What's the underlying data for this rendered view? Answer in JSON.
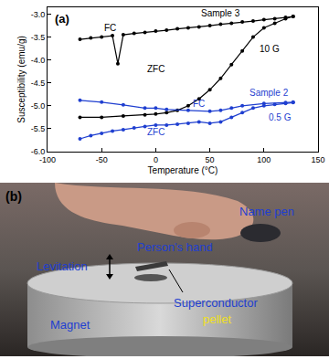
{
  "chart_data": {
    "type": "line",
    "panel_label": "(a)",
    "x_label": "Temperature (°C)",
    "y_label": "Susceptibility (emu/g)",
    "xlim": [
      -100,
      150
    ],
    "xticks": [
      -100,
      -50,
      0,
      50,
      100,
      150
    ],
    "ylim": [
      -6.0,
      -2.85
    ],
    "yticks": [
      {
        "value": -6.0,
        "label": "-6.0"
      },
      {
        "value": -5.5,
        "label": "-5.5"
      },
      {
        "value": -5.0,
        "label": "-5.0"
      },
      {
        "value": -4.5,
        "label": "-4.5"
      },
      {
        "value": -4.0,
        "label": "-4.0"
      },
      {
        "value": -3.5,
        "label": "-3.5"
      },
      {
        "value": -3.0,
        "label": "-3.0"
      }
    ],
    "grid": false,
    "marker": "circle",
    "line_style": "solid",
    "series": [
      {
        "color": "#000000",
        "x": [
          -70,
          -60,
          -50,
          -40,
          -35,
          -30,
          -20,
          -10,
          0,
          10,
          20,
          30,
          40,
          50,
          60,
          70,
          80,
          90,
          100,
          110,
          120,
          127
        ],
        "values": [
          -3.55,
          -3.52,
          -3.5,
          -3.47,
          -4.08,
          -3.45,
          -3.42,
          -3.4,
          -3.37,
          -3.35,
          -3.32,
          -3.3,
          -3.28,
          -3.25,
          -3.22,
          -3.2,
          -3.17,
          -3.15,
          -3.12,
          -3.1,
          -3.07,
          -3.05
        ]
      },
      {
        "color": "#000000",
        "x": [
          -70,
          -50,
          -30,
          -10,
          0,
          10,
          20,
          30,
          40,
          50,
          60,
          70,
          80,
          90,
          100,
          110,
          120,
          127
        ],
        "values": [
          -5.25,
          -5.25,
          -5.22,
          -5.2,
          -5.18,
          -5.15,
          -5.1,
          -5.0,
          -4.85,
          -4.65,
          -4.4,
          -4.1,
          -3.8,
          -3.5,
          -3.3,
          -3.2,
          -3.1,
          -3.05
        ]
      },
      {
        "color": "#1f3fd0",
        "x": [
          -70,
          -50,
          -30,
          -10,
          0,
          10,
          30,
          50,
          60,
          70,
          80,
          100,
          120,
          127
        ],
        "values": [
          -4.88,
          -4.92,
          -4.98,
          -5.05,
          -5.05,
          -5.08,
          -5.1,
          -5.12,
          -5.1,
          -5.05,
          -5.0,
          -4.95,
          -4.93,
          -4.92
        ]
      },
      {
        "color": "#1f3fd0",
        "x": [
          -70,
          -60,
          -50,
          -40,
          -30,
          -20,
          -10,
          0,
          10,
          20,
          30,
          40,
          50,
          60,
          70,
          80,
          90,
          100,
          110,
          120,
          127
        ],
        "values": [
          -5.72,
          -5.65,
          -5.6,
          -5.55,
          -5.52,
          -5.48,
          -5.45,
          -5.42,
          -5.42,
          -5.4,
          -5.38,
          -5.35,
          -5.38,
          -5.35,
          -5.25,
          -5.15,
          -5.05,
          -5.0,
          -4.97,
          -4.95,
          -4.93
        ]
      }
    ],
    "annotations": [
      {
        "text": "Sample 3",
        "x": 60,
        "y": -2.97,
        "color": "#000000"
      },
      {
        "text": "FC",
        "x": -42,
        "y": -3.3,
        "color": "#000000"
      },
      {
        "text": "10 G",
        "x": 105,
        "y": -3.75,
        "color": "#000000"
      },
      {
        "text": "ZFC",
        "x": 0,
        "y": -4.2,
        "color": "#000000"
      },
      {
        "text": "Sample 2",
        "x": 105,
        "y": -4.72,
        "color": "#1f3fd0"
      },
      {
        "text": "FC",
        "x": 40,
        "y": -4.95,
        "color": "#1f3fd0"
      },
      {
        "text": "0.5 G",
        "x": 115,
        "y": -5.25,
        "color": "#1f3fd0"
      },
      {
        "text": "ZFC",
        "x": 0,
        "y": -5.58,
        "color": "#1f3fd0"
      }
    ]
  },
  "panel_b": {
    "texts": [
      {
        "text": "(b)",
        "color": "#000000"
      },
      {
        "text": "Person's hand",
        "color": "#1f3fd0"
      },
      {
        "text": "Name pen",
        "color": "#1f3fd0"
      },
      {
        "text": "Levitation",
        "color": "#1f3fd0"
      },
      {
        "text": "Magnet",
        "color": "#1f3fd0"
      },
      {
        "text": "Superconductor",
        "color": "#1f3fd0"
      },
      {
        "text": "pellet",
        "color": "#f0e020"
      }
    ]
  }
}
